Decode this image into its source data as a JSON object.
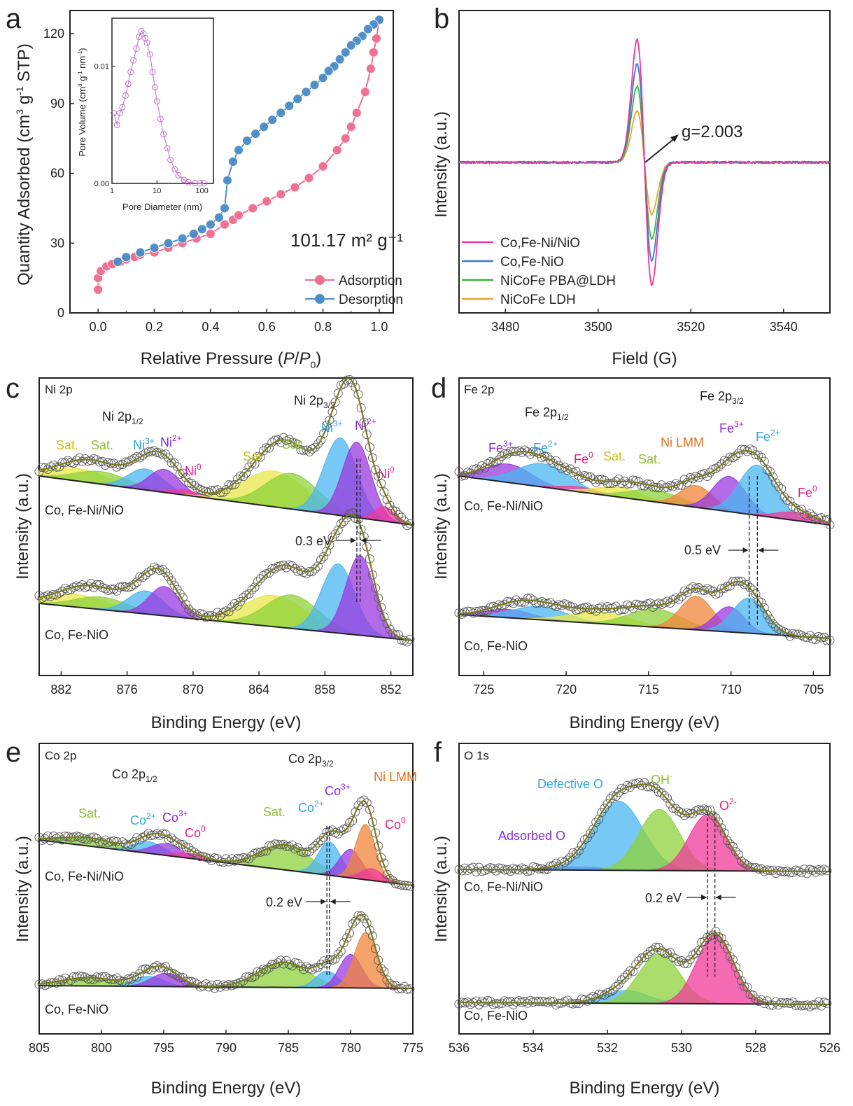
{
  "chart_data": [
    {
      "panel": "a",
      "type": "line",
      "xlabel": "Relative Pressure (P/P0)",
      "ylabel": "Quantity Adsorbed (cm3 g-1 STP)",
      "xlim": [
        -0.1,
        1.05
      ],
      "ylim": [
        0,
        130
      ],
      "xticks": [
        "0.0",
        "0.2",
        "0.4",
        "0.6",
        "0.8",
        "1.0"
      ],
      "yticks": [
        "0",
        "30",
        "60",
        "90",
        "120"
      ],
      "annotation": "101.17 m² g⁻¹",
      "colors": {
        "Adsorption": "#f06c8f",
        "Desorption": "#4a8cc7"
      },
      "series": [
        {
          "name": "Adsorption",
          "x": [
            0.0,
            0.0,
            0.01,
            0.03,
            0.05,
            0.08,
            0.1,
            0.13,
            0.15,
            0.2,
            0.25,
            0.3,
            0.35,
            0.4,
            0.45,
            0.48,
            0.5,
            0.55,
            0.6,
            0.65,
            0.7,
            0.75,
            0.8,
            0.85,
            0.88,
            0.9,
            0.92,
            0.95,
            0.97,
            0.98,
            0.99,
            1.0
          ],
          "y": [
            10,
            15,
            18,
            20,
            21,
            22,
            23,
            24,
            25,
            26,
            28,
            30,
            32,
            34,
            38,
            40,
            42,
            45,
            48,
            51,
            54,
            58,
            63,
            70,
            75,
            80,
            86,
            95,
            105,
            112,
            118,
            126
          ]
        },
        {
          "name": "Desorption",
          "x": [
            1.0,
            0.98,
            0.96,
            0.94,
            0.92,
            0.9,
            0.88,
            0.86,
            0.84,
            0.82,
            0.8,
            0.77,
            0.74,
            0.71,
            0.68,
            0.65,
            0.62,
            0.59,
            0.56,
            0.53,
            0.5,
            0.48,
            0.46,
            0.45,
            0.43,
            0.4,
            0.37,
            0.34,
            0.3,
            0.25,
            0.2,
            0.15,
            0.1,
            0.07
          ],
          "y": [
            126,
            124,
            122,
            119,
            117,
            115,
            112,
            109,
            106,
            104,
            101,
            98,
            95,
            92,
            89,
            86,
            83,
            80,
            77,
            74,
            70,
            65,
            57,
            45,
            41,
            38,
            36,
            34,
            32,
            30,
            28,
            26,
            24,
            22
          ]
        }
      ],
      "inset": {
        "xlabel": "Pore Diameter (nm)",
        "ylabel": "Pore Volume (cm3 g-1 nm-1)",
        "xticks": [
          "1",
          "10",
          "100"
        ],
        "yticks": [
          "0.00",
          "0.01"
        ],
        "xscale": "log",
        "x": [
          1.1,
          1.3,
          1.5,
          1.7,
          2.0,
          2.3,
          2.6,
          3.0,
          3.5,
          4.0,
          4.5,
          5.0,
          5.5,
          6.0,
          7.0,
          8.0,
          9.0,
          10,
          12,
          14,
          17,
          20,
          25,
          30,
          40,
          50,
          70,
          90,
          110
        ],
        "y": [
          0.006,
          0.005,
          0.006,
          0.0065,
          0.0075,
          0.0085,
          0.0095,
          0.0105,
          0.0115,
          0.0125,
          0.013,
          0.0128,
          0.0124,
          0.012,
          0.011,
          0.0095,
          0.0082,
          0.007,
          0.0055,
          0.0042,
          0.003,
          0.002,
          0.0012,
          0.0007,
          0.0003,
          0.0001,
          3e-05,
          0.0,
          0.0
        ]
      }
    },
    {
      "panel": "b",
      "type": "line",
      "xlabel": "Field (G)",
      "ylabel": "Intensity (a.u.)",
      "xlim": [
        3470,
        3550
      ],
      "xticks": [
        "3480",
        "3500",
        "3520",
        "3540"
      ],
      "annotation": "g=2.003",
      "center_field": 3510,
      "series": [
        {
          "name": "Co,Fe-Ni/NiO",
          "color": "#e8379e",
          "amplitude": 1.0
        },
        {
          "name": "Co,Fe-NiO",
          "color": "#3a78d8",
          "amplitude": 0.8
        },
        {
          "name": "NiCoFe PBA@LDH",
          "color": "#3cb43c",
          "amplitude": 0.62
        },
        {
          "name": "NiCoFe LDH",
          "color": "#f0a030",
          "amplitude": 0.42
        }
      ]
    },
    {
      "panel": "c",
      "type": "xps",
      "element": "Ni 2p",
      "xlabel": "Binding Energy (eV)",
      "ylabel": "Intensity (a.u.)",
      "xlim": [
        884,
        850
      ],
      "xticks": [
        "882",
        "876",
        "870",
        "864",
        "858",
        "852"
      ],
      "labels": {
        "half": "Ni 2p1/2",
        "three_half": "Ni 2p3/2",
        "shift": "0.3 eV",
        "top_sample": "Co, Fe-Ni/NiO",
        "bottom_sample": "Co, Fe-NiO"
      },
      "peak_labels": [
        "Sat.",
        "Sat.",
        "Ni3+",
        "Ni2+",
        "Ni0",
        "Sat.",
        "Sat.",
        "Ni3+",
        "Ni2+",
        "Ni0"
      ],
      "top_peaks": [
        {
          "center": 880.5,
          "width": 2.6,
          "height": 0.12,
          "color": "#e8e84a"
        },
        {
          "center": 878.3,
          "width": 2.4,
          "height": 0.12,
          "color": "#8ed13a"
        },
        {
          "center": 874.3,
          "width": 1.6,
          "height": 0.2,
          "color": "#4ab6f0"
        },
        {
          "center": 872.6,
          "width": 1.4,
          "height": 0.22,
          "color": "#9a3ae0"
        },
        {
          "center": 870.8,
          "width": 1.2,
          "height": 0.05,
          "color": "#f03a9a"
        },
        {
          "center": 862.6,
          "width": 2.8,
          "height": 0.34,
          "color": "#e8e84a"
        },
        {
          "center": 861.0,
          "width": 2.4,
          "height": 0.34,
          "color": "#8ed13a"
        },
        {
          "center": 856.6,
          "width": 1.5,
          "height": 0.74,
          "color": "#4ab6f0"
        },
        {
          "center": 855.1,
          "width": 1.3,
          "height": 0.72,
          "color": "#9a3ae0"
        },
        {
          "center": 852.6,
          "width": 0.9,
          "height": 0.14,
          "color": "#f03a9a"
        }
      ],
      "bottom_peaks": [
        {
          "center": 880.5,
          "width": 2.6,
          "height": 0.12,
          "color": "#e8e84a"
        },
        {
          "center": 878.3,
          "width": 2.4,
          "height": 0.12,
          "color": "#8ed13a"
        },
        {
          "center": 874.3,
          "width": 1.6,
          "height": 0.22,
          "color": "#4ab6f0"
        },
        {
          "center": 872.6,
          "width": 1.4,
          "height": 0.28,
          "color": "#9a3ae0"
        },
        {
          "center": 862.6,
          "width": 2.8,
          "height": 0.3,
          "color": "#e8e84a"
        },
        {
          "center": 861.0,
          "width": 2.4,
          "height": 0.32,
          "color": "#8ed13a"
        },
        {
          "center": 856.8,
          "width": 1.5,
          "height": 0.66,
          "color": "#4ab6f0"
        },
        {
          "center": 854.8,
          "width": 1.3,
          "height": 0.76,
          "color": "#9a3ae0"
        }
      ]
    },
    {
      "panel": "d",
      "type": "xps",
      "element": "Fe 2p",
      "xlabel": "Binding Energy (eV)",
      "ylabel": "Intensity (a.u.)",
      "xlim": [
        726.5,
        704
      ],
      "xticks": [
        "725",
        "720",
        "715",
        "710",
        "705"
      ],
      "labels": {
        "half": "Fe 2p1/2",
        "three_half": "Fe 2p3/2",
        "shift": "0.5 eV",
        "top_sample": "Co, Fe-Ni/NiO",
        "bottom_sample": "Co, Fe-NiO"
      },
      "peak_labels": [
        "Fe3+",
        "Fe2+",
        "Fe0",
        "Sat.",
        "Sat.",
        "Ni LMM",
        "Fe3+",
        "Fe2+",
        "Fe0"
      ],
      "top_peaks": [
        {
          "center": 723.5,
          "width": 1.4,
          "height": 0.22,
          "color": "#9a3ae0"
        },
        {
          "center": 721.4,
          "width": 1.6,
          "height": 0.28,
          "color": "#4ab6f0"
        },
        {
          "center": 719.2,
          "width": 1.2,
          "height": 0.06,
          "color": "#f03a9a"
        },
        {
          "center": 716.8,
          "width": 1.4,
          "height": 0.12,
          "color": "#e8e84a"
        },
        {
          "center": 714.6,
          "width": 1.6,
          "height": 0.14,
          "color": "#8ed13a"
        },
        {
          "center": 712.1,
          "width": 1.0,
          "height": 0.26,
          "color": "#f0843a"
        },
        {
          "center": 710.1,
          "width": 1.0,
          "height": 0.42,
          "color": "#9a3ae0"
        },
        {
          "center": 708.4,
          "width": 1.1,
          "height": 0.6,
          "color": "#4ab6f0"
        },
        {
          "center": 706.0,
          "width": 1.2,
          "height": 0.1,
          "color": "#f03a9a"
        }
      ],
      "bottom_peaks": [
        {
          "center": 723.5,
          "width": 1.4,
          "height": 0.1,
          "color": "#9a3ae0"
        },
        {
          "center": 721.6,
          "width": 1.6,
          "height": 0.16,
          "color": "#4ab6f0"
        },
        {
          "center": 718.0,
          "width": 1.8,
          "height": 0.14,
          "color": "#e8e84a"
        },
        {
          "center": 714.6,
          "width": 1.6,
          "height": 0.22,
          "color": "#8ed13a"
        },
        {
          "center": 712.1,
          "width": 1.0,
          "height": 0.4,
          "color": "#f0843a"
        },
        {
          "center": 710.1,
          "width": 0.9,
          "height": 0.3,
          "color": "#9a3ae0"
        },
        {
          "center": 708.9,
          "width": 1.0,
          "height": 0.42,
          "color": "#4ab6f0"
        }
      ]
    },
    {
      "panel": "e",
      "type": "xps",
      "element": "Co 2p",
      "xlabel": "Binding Energy (eV)",
      "ylabel": "Intensity (a.u.)",
      "xlim": [
        805,
        775
      ],
      "xticks": [
        "805",
        "800",
        "795",
        "790",
        "785",
        "780",
        "775"
      ],
      "labels": {
        "half": "Co 2p1/2",
        "three_half": "Co 2p3/2",
        "shift": "0.2 eV",
        "top_sample": "Co, Fe-Ni/NiO",
        "bottom_sample": "Co, Fe-NiO"
      },
      "peak_labels": [
        "Sat.",
        "Co2+",
        "Co3+",
        "Co0",
        "Sat.",
        "Co2+",
        "Co3+",
        "Ni LMM",
        "Co0"
      ],
      "top_peaks": [
        {
          "center": 801.0,
          "width": 2.2,
          "height": 0.1,
          "color": "#8ed13a"
        },
        {
          "center": 796.2,
          "width": 1.2,
          "height": 0.14,
          "color": "#4ab6f0"
        },
        {
          "center": 794.8,
          "width": 1.2,
          "height": 0.14,
          "color": "#9a3ae0"
        },
        {
          "center": 793.0,
          "width": 1.2,
          "height": 0.06,
          "color": "#f03a9a"
        },
        {
          "center": 785.2,
          "width": 2.0,
          "height": 0.3,
          "color": "#8ed13a"
        },
        {
          "center": 781.7,
          "width": 0.9,
          "height": 0.4,
          "color": "#4ab6f0"
        },
        {
          "center": 780.0,
          "width": 0.9,
          "height": 0.34,
          "color": "#9a3ae0"
        },
        {
          "center": 778.8,
          "width": 0.8,
          "height": 0.66,
          "color": "#f0843a"
        },
        {
          "center": 778.3,
          "width": 0.9,
          "height": 0.14,
          "color": "#f03a9a"
        }
      ],
      "bottom_peaks": [
        {
          "center": 801.0,
          "width": 2.2,
          "height": 0.1,
          "color": "#8ed13a"
        },
        {
          "center": 796.2,
          "width": 1.2,
          "height": 0.12,
          "color": "#4ab6f0"
        },
        {
          "center": 794.8,
          "width": 1.2,
          "height": 0.16,
          "color": "#9a3ae0"
        },
        {
          "center": 785.4,
          "width": 2.0,
          "height": 0.3,
          "color": "#8ed13a"
        },
        {
          "center": 781.9,
          "width": 0.9,
          "height": 0.2,
          "color": "#4ab6f0"
        },
        {
          "center": 780.0,
          "width": 0.9,
          "height": 0.4,
          "color": "#9a3ae0"
        },
        {
          "center": 778.8,
          "width": 0.9,
          "height": 0.66,
          "color": "#f0843a"
        }
      ]
    },
    {
      "panel": "f",
      "type": "xps",
      "element": "O 1s",
      "xlabel": "Binding Energy (eV)",
      "ylabel": "Intensity (a.u.)",
      "xlim": [
        536,
        526
      ],
      "xticks": [
        "536",
        "534",
        "532",
        "530",
        "528",
        "526"
      ],
      "labels": {
        "shift": "0.2 eV",
        "top_sample": "Co, Fe-Ni/NiO",
        "bottom_sample": "Co, Fe-NiO"
      },
      "peak_labels": [
        "Defective O",
        "OH-",
        "O2-",
        "Adsorbed O"
      ],
      "top_peaks": [
        {
          "center": 532.8,
          "width": 0.7,
          "height": 0.04,
          "color": "#9a3ae0"
        },
        {
          "center": 531.7,
          "width": 0.65,
          "height": 0.86,
          "color": "#4ab6f0"
        },
        {
          "center": 530.6,
          "width": 0.55,
          "height": 0.76,
          "color": "#8ed13a"
        },
        {
          "center": 529.3,
          "width": 0.5,
          "height": 0.7,
          "color": "#f03a9a"
        }
      ],
      "bottom_peaks": [
        {
          "center": 531.5,
          "width": 0.6,
          "height": 0.16,
          "color": "#4ab6f0"
        },
        {
          "center": 530.6,
          "width": 0.55,
          "height": 0.62,
          "color": "#8ed13a"
        },
        {
          "center": 529.1,
          "width": 0.5,
          "height": 0.86,
          "color": "#f03a9a"
        }
      ]
    }
  ]
}
